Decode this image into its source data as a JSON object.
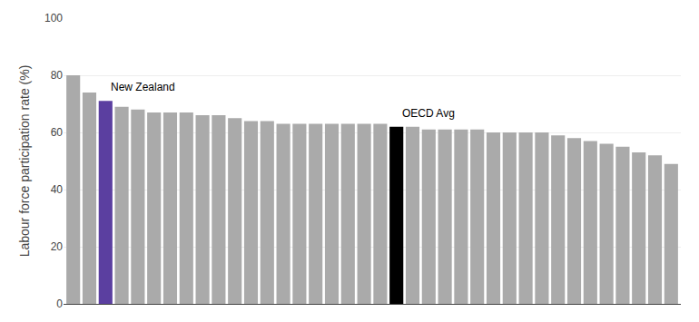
{
  "chart_data": {
    "type": "bar",
    "ylabel": "Labour force participation rate (%)",
    "categories": [
      null,
      null,
      null,
      null,
      null,
      null,
      null,
      null,
      null,
      null,
      null,
      null,
      null,
      null,
      null,
      null,
      null,
      null,
      null,
      null,
      null,
      null,
      null,
      null,
      null,
      null,
      null,
      null,
      null,
      null,
      null,
      null,
      null,
      null,
      null,
      null,
      null,
      null
    ],
    "values": [
      80,
      74,
      71,
      69,
      68,
      67,
      67,
      67,
      66,
      66,
      65,
      64,
      64,
      63,
      63,
      63,
      63,
      63,
      63,
      63,
      62,
      62,
      61,
      61,
      61,
      61,
      60,
      60,
      60,
      60,
      59,
      58,
      57,
      56,
      55,
      53,
      52,
      49
    ],
    "colors": [
      "#aaaaaa",
      "#aaaaaa",
      "#5b3fa0",
      "#aaaaaa",
      "#aaaaaa",
      "#aaaaaa",
      "#aaaaaa",
      "#aaaaaa",
      "#aaaaaa",
      "#aaaaaa",
      "#aaaaaa",
      "#aaaaaa",
      "#aaaaaa",
      "#aaaaaa",
      "#aaaaaa",
      "#aaaaaa",
      "#aaaaaa",
      "#aaaaaa",
      "#aaaaaa",
      "#aaaaaa",
      "#000000",
      "#aaaaaa",
      "#aaaaaa",
      "#aaaaaa",
      "#aaaaaa",
      "#aaaaaa",
      "#aaaaaa",
      "#aaaaaa",
      "#aaaaaa",
      "#aaaaaa",
      "#aaaaaa",
      "#aaaaaa",
      "#aaaaaa",
      "#aaaaaa",
      "#aaaaaa",
      "#aaaaaa",
      "#aaaaaa",
      "#aaaaaa"
    ],
    "annotations": [
      {
        "text": "New Zealand",
        "x": 2
      },
      {
        "text": "OECD Avg",
        "x": 20
      }
    ],
    "ylim": [
      0,
      100
    ],
    "yticks": [
      0,
      20,
      40,
      60,
      80,
      100
    ],
    "grid": true,
    "tick_labels": "y"
  }
}
